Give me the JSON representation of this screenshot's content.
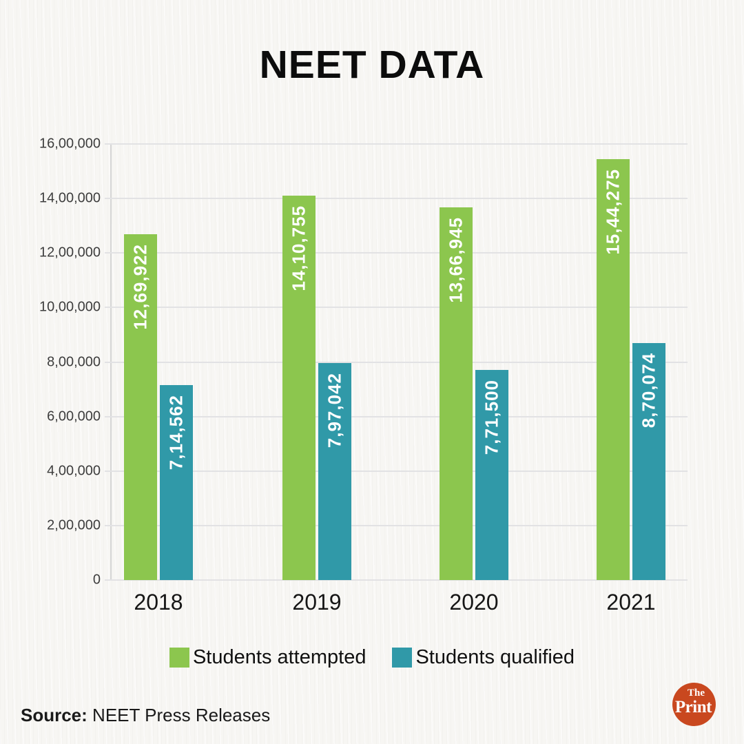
{
  "title": "NEET DATA",
  "chart_data": {
    "type": "bar",
    "title": "NEET DATA",
    "categories": [
      "2018",
      "2019",
      "2020",
      "2021"
    ],
    "series": [
      {
        "name": "Students attempted",
        "color": "#8cc64e",
        "values": [
          1269922,
          1410755,
          1366945,
          1544275
        ],
        "labels": [
          "12,69,922",
          "14,10,755",
          "13,66,945",
          "15,44,275"
        ]
      },
      {
        "name": "Students qualified",
        "color": "#3099a8",
        "values": [
          714562,
          797042,
          771500,
          870074
        ],
        "labels": [
          "7,14,562",
          "7,97,042",
          "7,71,500",
          "8,70,074"
        ]
      }
    ],
    "ylim": [
      0,
      1600000
    ],
    "yticks": [
      "0",
      "2,00,000",
      "4,00,000",
      "6,00,000",
      "8,00,000",
      "10,00,000",
      "12,00,000",
      "14,00,000",
      "16,00,000"
    ],
    "grid": true,
    "legend_position": "bottom",
    "value_label_rotation": -90,
    "xlabel": "",
    "ylabel": ""
  },
  "source": {
    "prefix": "Source:",
    "text": "NEET Press Releases"
  },
  "logo": {
    "line1": "The",
    "line2": "Print",
    "color": "#c9481f"
  }
}
